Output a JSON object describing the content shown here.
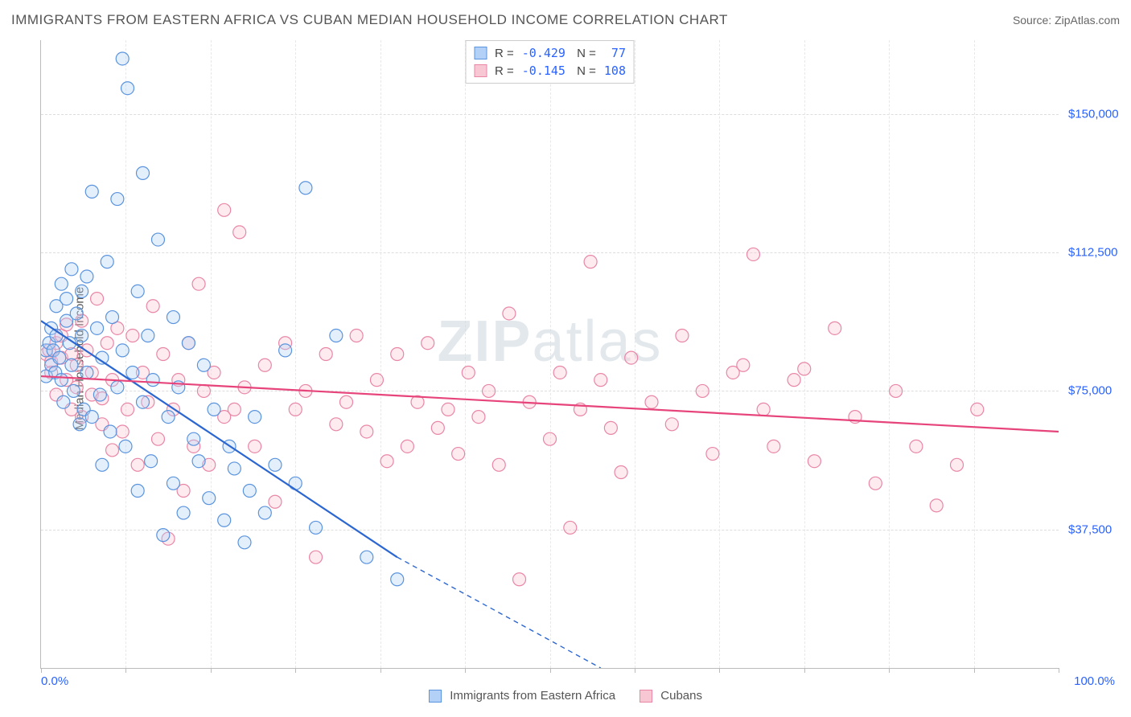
{
  "header": {
    "title": "IMMIGRANTS FROM EASTERN AFRICA VS CUBAN MEDIAN HOUSEHOLD INCOME CORRELATION CHART",
    "source_prefix": "Source: ",
    "source_name": "ZipAtlas.com"
  },
  "watermark": {
    "zip": "ZIP",
    "atlas": "atlas"
  },
  "chart": {
    "type": "scatter",
    "background_color": "#ffffff",
    "grid_color": "#dddddd",
    "axis_color": "#bbbbbb",
    "tick_label_color": "#2962ff",
    "ylabel": "Median Household Income",
    "ylabel_fontsize": 15,
    "xlim": [
      0,
      100
    ],
    "ylim": [
      0,
      170000
    ],
    "y_ticks": [
      {
        "value": 37500,
        "label": "$37,500"
      },
      {
        "value": 75000,
        "label": "$75,000"
      },
      {
        "value": 112500,
        "label": "$112,500"
      },
      {
        "value": 150000,
        "label": "$150,000"
      }
    ],
    "x_tick_values": [
      0,
      8.33,
      16.67,
      25,
      33.33,
      41.67,
      50,
      58.33,
      66.67,
      75,
      83.33,
      91.67,
      100
    ],
    "x_min_label": "0.0%",
    "x_max_label": "100.0%",
    "marker_radius": 8,
    "marker_stroke_width": 1.2,
    "marker_fill_opacity": 0.35,
    "trend_line_width": 2.2,
    "series": [
      {
        "name": "Immigrants from Eastern Africa",
        "color_fill": "#b3d1f6",
        "color_stroke": "#5a94de",
        "trend_color": "#2b66d1",
        "R": "-0.429",
        "N": "77",
        "trend": {
          "x1": 0,
          "y1": 94000,
          "x2_solid": 35,
          "y2_solid": 30000,
          "x2_dash": 55,
          "y2_dash": 0
        },
        "points": [
          [
            0.5,
            79000
          ],
          [
            0.5,
            86000
          ],
          [
            0.8,
            88000
          ],
          [
            1,
            82000
          ],
          [
            1,
            92000
          ],
          [
            1.2,
            86000
          ],
          [
            1.4,
            80000
          ],
          [
            1.5,
            90000
          ],
          [
            1.5,
            98000
          ],
          [
            1.8,
            84000
          ],
          [
            2,
            104000
          ],
          [
            2,
            78000
          ],
          [
            2.2,
            72000
          ],
          [
            2.5,
            94000
          ],
          [
            2.5,
            100000
          ],
          [
            2.8,
            88000
          ],
          [
            3,
            108000
          ],
          [
            3,
            82000
          ],
          [
            3.2,
            75000
          ],
          [
            3.5,
            96000
          ],
          [
            3.8,
            66000
          ],
          [
            4,
            90000
          ],
          [
            4,
            102000
          ],
          [
            4.2,
            70000
          ],
          [
            4.5,
            80000
          ],
          [
            4.5,
            106000
          ],
          [
            5,
            129000
          ],
          [
            5,
            68000
          ],
          [
            5.5,
            92000
          ],
          [
            5.8,
            74000
          ],
          [
            6,
            84000
          ],
          [
            6,
            55000
          ],
          [
            6.5,
            110000
          ],
          [
            6.8,
            64000
          ],
          [
            7,
            95000
          ],
          [
            7.5,
            127000
          ],
          [
            7.5,
            76000
          ],
          [
            8,
            165000
          ],
          [
            8,
            86000
          ],
          [
            8.3,
            60000
          ],
          [
            8.5,
            157000
          ],
          [
            9,
            80000
          ],
          [
            9.5,
            102000
          ],
          [
            9.5,
            48000
          ],
          [
            10,
            134000
          ],
          [
            10,
            72000
          ],
          [
            10.5,
            90000
          ],
          [
            10.8,
            56000
          ],
          [
            11,
            78000
          ],
          [
            11.5,
            116000
          ],
          [
            12,
            36000
          ],
          [
            12.5,
            68000
          ],
          [
            13,
            95000
          ],
          [
            13,
            50000
          ],
          [
            13.5,
            76000
          ],
          [
            14,
            42000
          ],
          [
            14.5,
            88000
          ],
          [
            15,
            62000
          ],
          [
            15.5,
            56000
          ],
          [
            16,
            82000
          ],
          [
            16.5,
            46000
          ],
          [
            17,
            70000
          ],
          [
            18,
            40000
          ],
          [
            18.5,
            60000
          ],
          [
            19,
            54000
          ],
          [
            20,
            34000
          ],
          [
            20.5,
            48000
          ],
          [
            21,
            68000
          ],
          [
            22,
            42000
          ],
          [
            23,
            55000
          ],
          [
            24,
            86000
          ],
          [
            25,
            50000
          ],
          [
            26,
            130000
          ],
          [
            27,
            38000
          ],
          [
            29,
            90000
          ],
          [
            32,
            30000
          ],
          [
            35,
            24000
          ]
        ]
      },
      {
        "name": "Cubans",
        "color_fill": "#f8c7d4",
        "color_stroke": "#e986a6",
        "trend_color": "#e6447a",
        "R": "-0.145",
        "N": "108",
        "trend": {
          "x1": 0,
          "y1": 79000,
          "x2_solid": 100,
          "y2_solid": 64000,
          "x2_dash": 100,
          "y2_dash": 64000
        },
        "points": [
          [
            0.5,
            85000
          ],
          [
            0.8,
            86000
          ],
          [
            1,
            83000
          ],
          [
            1,
            80000
          ],
          [
            1.5,
            88000
          ],
          [
            1.5,
            74000
          ],
          [
            2,
            84000
          ],
          [
            2,
            90000
          ],
          [
            2.5,
            78000
          ],
          [
            2.5,
            93000
          ],
          [
            3,
            70000
          ],
          [
            3,
            85000
          ],
          [
            3.5,
            76000
          ],
          [
            3.5,
            82000
          ],
          [
            4,
            68000
          ],
          [
            4,
            94000
          ],
          [
            4.5,
            86000
          ],
          [
            5,
            74000
          ],
          [
            5,
            80000
          ],
          [
            5.5,
            100000
          ],
          [
            6,
            66000
          ],
          [
            6,
            73000
          ],
          [
            6.5,
            88000
          ],
          [
            7,
            59000
          ],
          [
            7,
            78000
          ],
          [
            7.5,
            92000
          ],
          [
            8,
            64000
          ],
          [
            8.5,
            70000
          ],
          [
            9,
            90000
          ],
          [
            9.5,
            55000
          ],
          [
            10,
            80000
          ],
          [
            10.5,
            72000
          ],
          [
            11,
            98000
          ],
          [
            11.5,
            62000
          ],
          [
            12,
            85000
          ],
          [
            12.5,
            35000
          ],
          [
            13,
            70000
          ],
          [
            13.5,
            78000
          ],
          [
            14,
            48000
          ],
          [
            14.5,
            88000
          ],
          [
            15,
            60000
          ],
          [
            15.5,
            104000
          ],
          [
            16,
            75000
          ],
          [
            16.5,
            55000
          ],
          [
            17,
            80000
          ],
          [
            18,
            68000
          ],
          [
            18,
            124000
          ],
          [
            19,
            70000
          ],
          [
            19.5,
            118000
          ],
          [
            20,
            76000
          ],
          [
            21,
            60000
          ],
          [
            22,
            82000
          ],
          [
            23,
            45000
          ],
          [
            24,
            88000
          ],
          [
            25,
            70000
          ],
          [
            26,
            75000
          ],
          [
            27,
            30000
          ],
          [
            28,
            85000
          ],
          [
            29,
            66000
          ],
          [
            30,
            72000
          ],
          [
            31,
            90000
          ],
          [
            32,
            64000
          ],
          [
            33,
            78000
          ],
          [
            34,
            56000
          ],
          [
            35,
            85000
          ],
          [
            36,
            60000
          ],
          [
            37,
            72000
          ],
          [
            38,
            88000
          ],
          [
            39,
            65000
          ],
          [
            40,
            70000
          ],
          [
            41,
            58000
          ],
          [
            42,
            80000
          ],
          [
            43,
            68000
          ],
          [
            44,
            75000
          ],
          [
            45,
            55000
          ],
          [
            46,
            96000
          ],
          [
            47,
            24000
          ],
          [
            48,
            72000
          ],
          [
            50,
            62000
          ],
          [
            51,
            80000
          ],
          [
            52,
            38000
          ],
          [
            53,
            70000
          ],
          [
            54,
            110000
          ],
          [
            55,
            78000
          ],
          [
            56,
            65000
          ],
          [
            57,
            53000
          ],
          [
            58,
            84000
          ],
          [
            60,
            72000
          ],
          [
            62,
            66000
          ],
          [
            63,
            90000
          ],
          [
            65,
            75000
          ],
          [
            66,
            58000
          ],
          [
            68,
            80000
          ],
          [
            69,
            82000
          ],
          [
            70,
            112000
          ],
          [
            71,
            70000
          ],
          [
            72,
            60000
          ],
          [
            74,
            78000
          ],
          [
            75,
            81000
          ],
          [
            76,
            56000
          ],
          [
            78,
            92000
          ],
          [
            80,
            68000
          ],
          [
            82,
            50000
          ],
          [
            84,
            75000
          ],
          [
            86,
            60000
          ],
          [
            88,
            44000
          ],
          [
            90,
            55000
          ],
          [
            92,
            70000
          ]
        ]
      }
    ]
  },
  "legend": {
    "series1": "Immigrants from Eastern Africa",
    "series2": "Cubans"
  }
}
